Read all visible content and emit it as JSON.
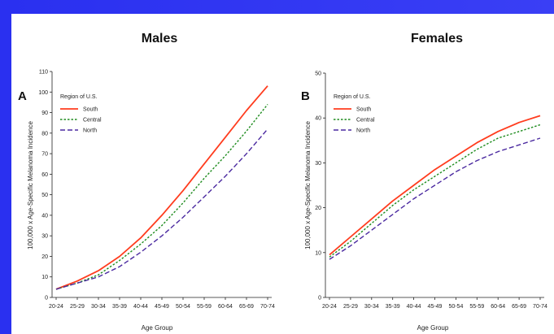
{
  "colors": {
    "south": "#ff3c1e",
    "central": "#1e8c1e",
    "north": "#4b2aa0",
    "background": "#2b33f2"
  },
  "chart_data": [
    {
      "type": "line",
      "panel": "A",
      "title": "Males",
      "xlabel": "Age Group",
      "ylabel": "100,000 x Age-Specific Melanoma Incidence",
      "legend_title": "Region of U.S.",
      "legend_position": "top-left",
      "categories": [
        "20-24",
        "25-29",
        "30-34",
        "35-39",
        "40-44",
        "45-49",
        "50-54",
        "55-59",
        "60-64",
        "65-69",
        "70-74"
      ],
      "x_tick_labels": [
        "20-24",
        "25-29",
        "30-34",
        "35-39",
        "40-44",
        "45-49",
        "50-54",
        "55-59",
        "60-64",
        "65-69",
        "70-74"
      ],
      "ylim": [
        0,
        110
      ],
      "y_ticks": [
        0,
        10,
        20,
        30,
        40,
        50,
        60,
        70,
        80,
        90,
        100,
        110
      ],
      "series": [
        {
          "name": "South",
          "style": "solid",
          "values": [
            4,
            8,
            13,
            20,
            29,
            40,
            52,
            65,
            78,
            91,
            103
          ]
        },
        {
          "name": "Central",
          "style": "dotted",
          "values": [
            4,
            7,
            11,
            18,
            26,
            35,
            46,
            58,
            69,
            81,
            94
          ]
        },
        {
          "name": "North",
          "style": "dashed",
          "values": [
            4,
            7,
            10,
            15,
            22,
            30,
            39,
            49,
            59,
            70,
            82
          ]
        }
      ]
    },
    {
      "type": "line",
      "panel": "B",
      "title": "Females",
      "xlabel": "Age Group",
      "ylabel": "100,000 x Age-Specific Melanoma Incidence",
      "legend_title": "Region of U.S.",
      "legend_position": "top-left",
      "categories": [
        "20-24",
        "25-29",
        "30-34",
        "35-39",
        "40-44",
        "45-49",
        "50-54",
        "55-59",
        "60-64",
        "65-69",
        "70-74"
      ],
      "x_tick_labels": [
        "20-24",
        "25-29",
        "30-34",
        "35-39",
        "40-44",
        "45-49",
        "50-54",
        "55-59",
        "60-64",
        "65-69",
        "70-74"
      ],
      "ylim": [
        0,
        50
      ],
      "y_ticks": [
        0,
        10,
        20,
        30,
        40,
        50
      ],
      "series": [
        {
          "name": "South",
          "style": "solid",
          "values": [
            9.5,
            13.5,
            17.5,
            21.5,
            25,
            28.5,
            31.5,
            34.5,
            37,
            39,
            40.5
          ]
        },
        {
          "name": "Central",
          "style": "dotted",
          "values": [
            9,
            12.5,
            16.5,
            20.5,
            24,
            27,
            30,
            33,
            35.5,
            37,
            38.5
          ]
        },
        {
          "name": "North",
          "style": "dashed",
          "values": [
            8.5,
            11.5,
            15,
            18.5,
            22,
            25,
            28,
            30.5,
            32.5,
            34,
            35.5
          ]
        }
      ]
    }
  ]
}
